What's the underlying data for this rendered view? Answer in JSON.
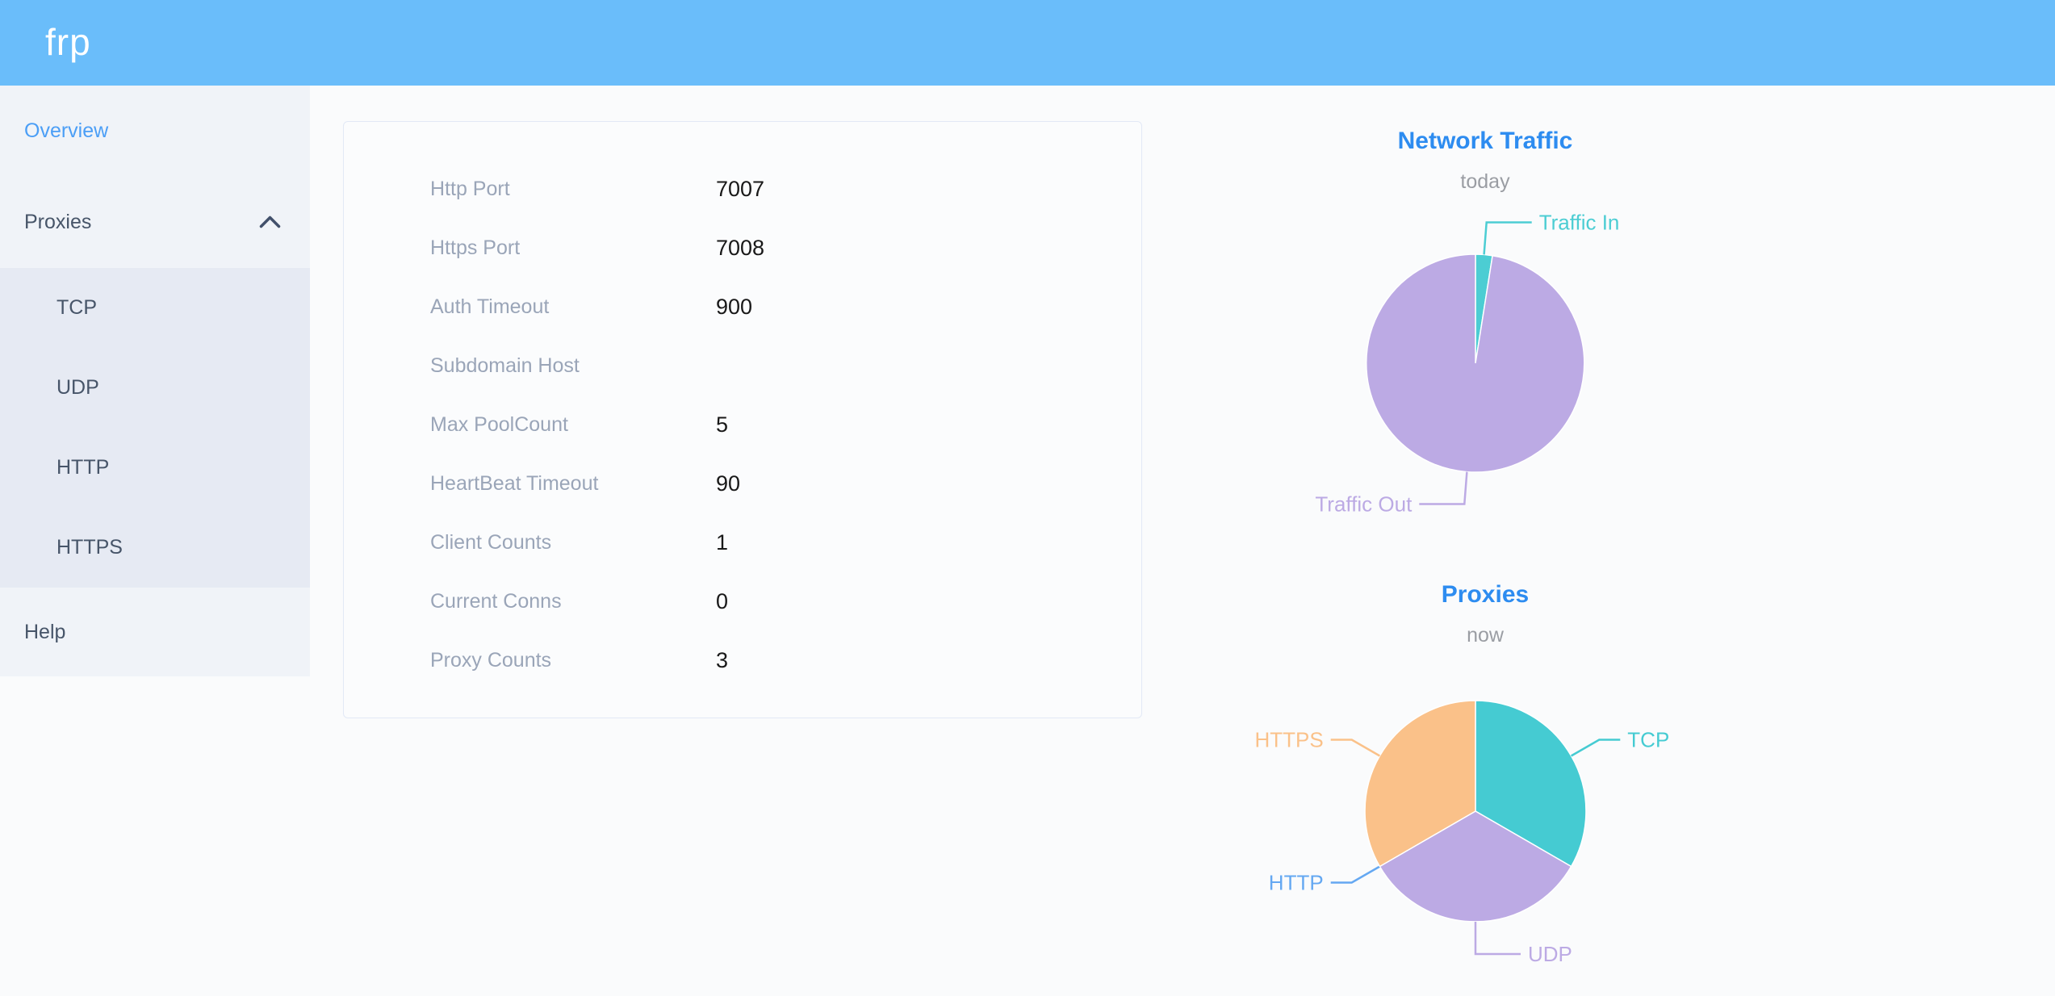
{
  "header": {
    "logo": "frp"
  },
  "sidebar": {
    "overview_label": "Overview",
    "proxies_label": "Proxies",
    "submenu": [
      "TCP",
      "UDP",
      "HTTP",
      "HTTPS"
    ],
    "help_label": "Help"
  },
  "overview_card": {
    "rows": [
      {
        "label": "Http Port",
        "value": "7007"
      },
      {
        "label": "Https Port",
        "value": "7008"
      },
      {
        "label": "Auth Timeout",
        "value": "900"
      },
      {
        "label": "Subdomain Host",
        "value": ""
      },
      {
        "label": "Max PoolCount",
        "value": "5"
      },
      {
        "label": "HeartBeat Timeout",
        "value": "90"
      },
      {
        "label": "Client Counts",
        "value": "1"
      },
      {
        "label": "Current Conns",
        "value": "0"
      },
      {
        "label": "Proxy Counts",
        "value": "3"
      }
    ]
  },
  "chart_data": [
    {
      "type": "pie",
      "title": "Network Traffic",
      "subtitle": "today",
      "legend_position": "callout-labels",
      "value_format": "percent-estimated-from-angles",
      "series": [
        {
          "name": "Traffic In",
          "value": 2.5,
          "color": "#4ccdd3"
        },
        {
          "name": "Traffic Out",
          "value": 97.5,
          "color": "#bcaae4"
        }
      ]
    },
    {
      "type": "pie",
      "title": "Proxies",
      "subtitle": "now",
      "legend_position": "callout-labels",
      "value_format": "proxy-counts",
      "series": [
        {
          "name": "TCP",
          "value": 1,
          "color": "#45cbd2"
        },
        {
          "name": "UDP",
          "value": 1,
          "color": "#bcaae4"
        },
        {
          "name": "HTTP",
          "value": 0,
          "color": "#64a8f2"
        },
        {
          "name": "HTTPS",
          "value": 1,
          "color": "#fac189"
        }
      ]
    }
  ],
  "colors": {
    "topbar": "#6abdfa",
    "active_menu": "#4b9ef6",
    "menu_text": "#475569",
    "chart_title": "#2d8cf0",
    "card_label": "#9aa5b8",
    "sidebar_bg": "#f0f3f8",
    "submenu_bg": "#e6eaf3"
  }
}
